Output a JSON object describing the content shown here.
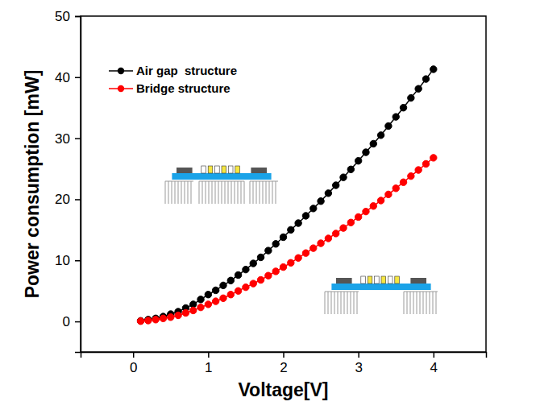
{
  "chart_data": {
    "type": "line",
    "x_label": "Voltage[V]",
    "y_label": "Power consumption [mW]",
    "x": [
      0.1,
      0.2,
      0.3,
      0.4,
      0.5,
      0.6,
      0.7,
      0.8,
      0.9,
      1.0,
      1.1,
      1.2,
      1.3,
      1.4,
      1.5,
      1.6,
      1.7,
      1.8,
      1.9,
      2.0,
      2.1,
      2.2,
      2.3,
      2.4,
      2.5,
      2.6,
      2.7,
      2.8,
      2.9,
      3.0,
      3.1,
      3.2,
      3.3,
      3.4,
      3.5,
      3.6,
      3.7,
      3.8,
      3.9,
      4.0
    ],
    "series": [
      {
        "name": "Air gap  structure",
        "color": "#000000",
        "marker": "circle",
        "line_style": "solid",
        "values": [
          0.1,
          0.3,
          0.5,
          0.8,
          1.2,
          1.6,
          2.2,
          2.8,
          3.6,
          4.4,
          5.1,
          5.9,
          6.7,
          7.6,
          8.5,
          9.5,
          10.5,
          11.6,
          12.7,
          13.8,
          15.0,
          16.1,
          17.3,
          18.5,
          19.7,
          21.0,
          22.3,
          23.6,
          24.9,
          26.3,
          27.7,
          29.1,
          30.5,
          32.0,
          33.5,
          35.0,
          36.6,
          38.1,
          39.7,
          41.3
        ]
      },
      {
        "name": "Bridge structure",
        "color": "#ff0000",
        "marker": "circle",
        "line_style": "solid",
        "values": [
          0.05,
          0.15,
          0.3,
          0.5,
          0.7,
          1.0,
          1.4,
          1.8,
          2.3,
          2.8,
          3.3,
          3.8,
          4.4,
          5.0,
          5.6,
          6.2,
          6.8,
          7.5,
          8.2,
          8.9,
          9.6,
          10.4,
          11.2,
          12.0,
          12.8,
          13.6,
          14.4,
          15.3,
          16.2,
          17.1,
          18.0,
          18.9,
          19.8,
          20.8,
          21.8,
          22.8,
          23.8,
          24.8,
          25.8,
          26.8
        ]
      }
    ],
    "xlim": [
      -0.7,
      4.7
    ],
    "xticks": [
      0,
      1,
      2,
      3,
      4
    ],
    "ylim": [
      -5,
      50
    ],
    "yticks": [
      0,
      10,
      20,
      30,
      40,
      50
    ],
    "grid": false,
    "legend": "upper left"
  }
}
